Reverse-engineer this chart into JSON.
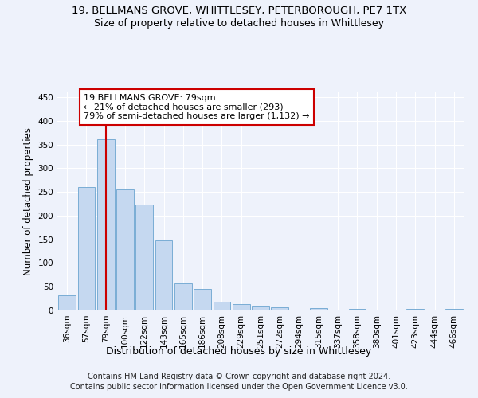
{
  "title_line1": "19, BELLMANS GROVE, WHITTLESEY, PETERBOROUGH, PE7 1TX",
  "title_line2": "Size of property relative to detached houses in Whittlesey",
  "xlabel": "Distribution of detached houses by size in Whittlesey",
  "ylabel": "Number of detached properties",
  "categories": [
    "36sqm",
    "57sqm",
    "79sqm",
    "100sqm",
    "122sqm",
    "143sqm",
    "165sqm",
    "186sqm",
    "208sqm",
    "229sqm",
    "251sqm",
    "272sqm",
    "294sqm",
    "315sqm",
    "337sqm",
    "358sqm",
    "380sqm",
    "401sqm",
    "423sqm",
    "444sqm",
    "466sqm"
  ],
  "values": [
    32,
    260,
    362,
    255,
    224,
    148,
    57,
    45,
    18,
    14,
    9,
    7,
    0,
    5,
    0,
    3,
    0,
    0,
    3,
    0,
    3
  ],
  "bar_color": "#c5d8f0",
  "bar_edge_color": "#7aadd4",
  "highlight_index": 2,
  "highlight_line_color": "#cc0000",
  "annotation_line1": "19 BELLMANS GROVE: 79sqm",
  "annotation_line2": "← 21% of detached houses are smaller (293)",
  "annotation_line3": "79% of semi-detached houses are larger (1,132) →",
  "annotation_box_color": "#ffffff",
  "annotation_box_edge_color": "#cc0000",
  "ylim": [
    0,
    462
  ],
  "yticks": [
    0,
    50,
    100,
    150,
    200,
    250,
    300,
    350,
    400,
    450
  ],
  "background_color": "#eef2fb",
  "plot_bg_color": "#eef2fb",
  "footer_line1": "Contains HM Land Registry data © Crown copyright and database right 2024.",
  "footer_line2": "Contains public sector information licensed under the Open Government Licence v3.0.",
  "title1_fontsize": 9.5,
  "title2_fontsize": 9,
  "xlabel_fontsize": 9,
  "ylabel_fontsize": 8.5,
  "tick_fontsize": 7.5,
  "annotation_fontsize": 8,
  "footer_fontsize": 7
}
